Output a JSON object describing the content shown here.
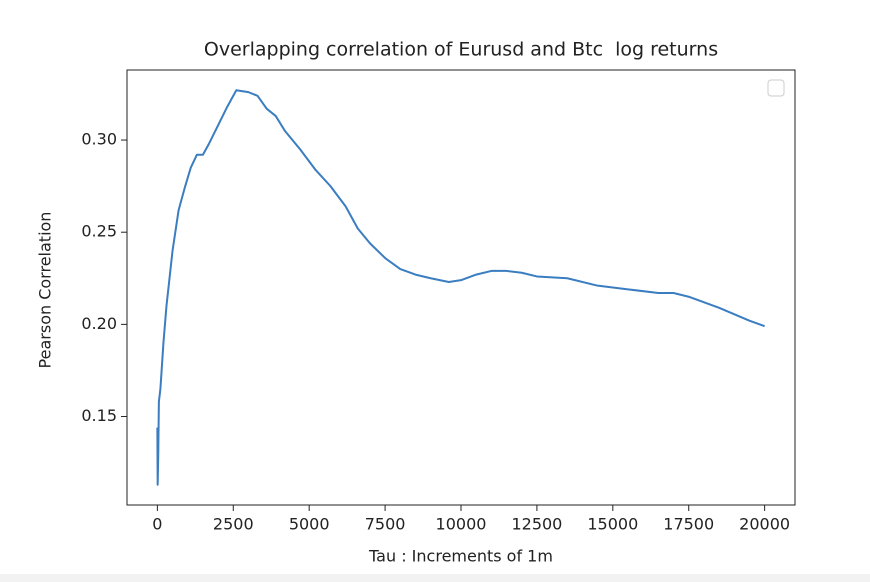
{
  "chart_data": {
    "type": "line",
    "title": "Overlapping correlation of Eurusd and Btc  log returns",
    "x_label": "Tau : Increments of 1m",
    "y_label": "Pearson Correlation",
    "series": [
      {
        "color": "#3a7dc0",
        "x": [
          0,
          10,
          30,
          50,
          100,
          200,
          300,
          500,
          700,
          900,
          1100,
          1300,
          1500,
          1700,
          2000,
          2300,
          2600,
          3000,
          3300,
          3600,
          3900,
          4200,
          4700,
          5200,
          5700,
          6200,
          6600,
          7000,
          7500,
          8000,
          8500,
          9000,
          9600,
          10000,
          10500,
          11000,
          11500,
          12000,
          12500,
          13500,
          14500,
          15500,
          16500,
          17000,
          17500,
          18500,
          19500,
          20000
        ],
        "values": [
          0.144,
          0.113,
          0.13,
          0.158,
          0.165,
          0.19,
          0.21,
          0.24,
          0.262,
          0.274,
          0.285,
          0.292,
          0.292,
          0.298,
          0.308,
          0.318,
          0.327,
          0.326,
          0.324,
          0.317,
          0.313,
          0.305,
          0.295,
          0.284,
          0.275,
          0.264,
          0.252,
          0.244,
          0.236,
          0.23,
          0.227,
          0.225,
          0.223,
          0.224,
          0.227,
          0.229,
          0.229,
          0.228,
          0.226,
          0.225,
          0.221,
          0.219,
          0.217,
          0.217,
          0.215,
          0.209,
          0.202,
          0.199
        ]
      }
    ],
    "xlim": [
      -1000,
      21000
    ],
    "xticks": [
      0,
      2500,
      5000,
      7500,
      10000,
      12500,
      15000,
      17500,
      20000
    ],
    "ylim": [
      0.102,
      0.338
    ],
    "yticks": [
      0.15,
      {
        "value": 0.2,
        "label": "0.20"
      },
      0.25,
      {
        "value": 0.3,
        "label": "0.30"
      }
    ],
    "legend": "upper right"
  }
}
